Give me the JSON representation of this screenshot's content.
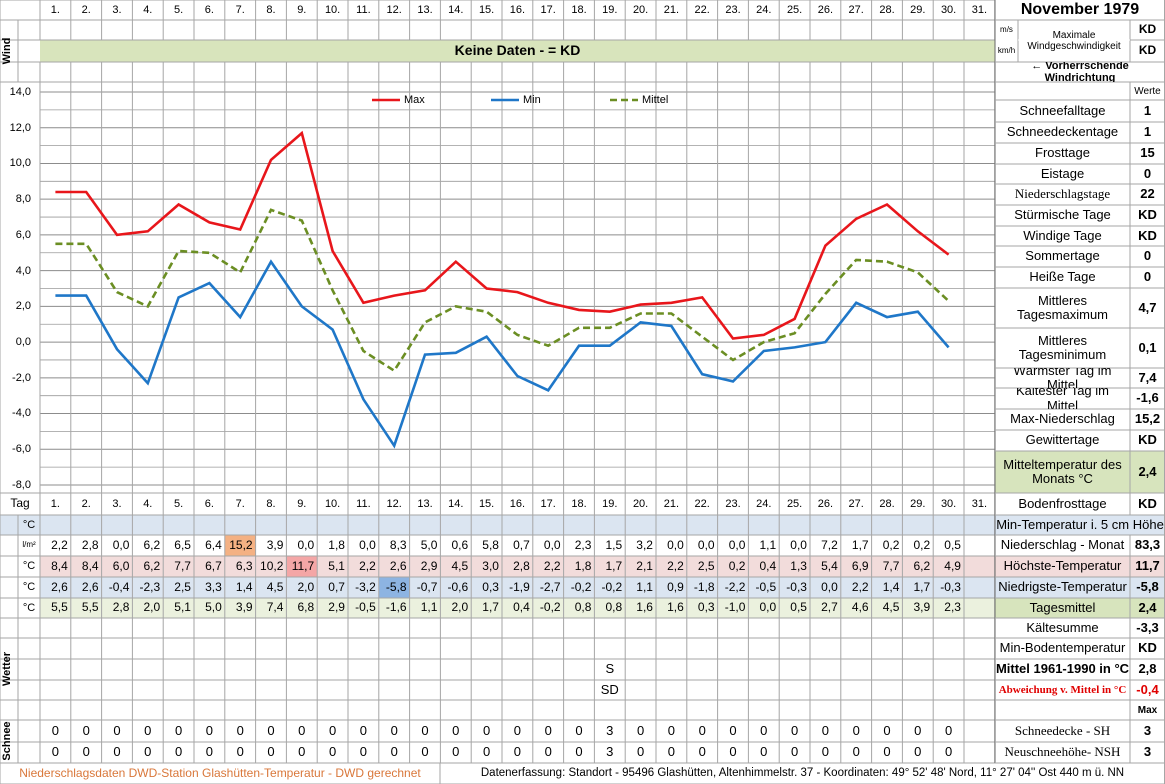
{
  "header": {
    "title": "November 1979",
    "wind_label": "Wind",
    "wind_units": [
      "m/s",
      "km/h"
    ],
    "wind_max_label": "Maximale Windgeschwindigkeit",
    "wind_max_values": [
      "KD",
      "KD"
    ],
    "wind_direction": "← Vorherrschende Windrichtung",
    "no_data": "Keine Daten -  = KD"
  },
  "chart_data": {
    "type": "line",
    "categories": [
      "1.",
      "2.",
      "3.",
      "4.",
      "5.",
      "6.",
      "7.",
      "8.",
      "9.",
      "10.",
      "11.",
      "12.",
      "13.",
      "14.",
      "15.",
      "16.",
      "17.",
      "18.",
      "19.",
      "20.",
      "21.",
      "22.",
      "23.",
      "24.",
      "25.",
      "26.",
      "27.",
      "28.",
      "29.",
      "30.",
      "31."
    ],
    "ylim": [
      -8,
      14
    ],
    "yticks": [
      {
        "value": 14,
        "label": "14,0"
      },
      {
        "value": 12,
        "label": "12,0"
      },
      {
        "value": 10,
        "label": "10,0"
      },
      {
        "value": 8,
        "label": "8,0"
      },
      {
        "value": 6,
        "label": "6,0"
      },
      {
        "value": 4,
        "label": "4,0"
      },
      {
        "value": 2,
        "label": "2,0"
      },
      {
        "value": 0,
        "label": "0,0"
      },
      {
        "value": -2,
        "label": "-2,0"
      },
      {
        "value": -4,
        "label": "-4,0"
      },
      {
        "value": -6,
        "label": "-6,0"
      },
      {
        "value": -8,
        "label": "-8,0"
      }
    ],
    "yminor": [
      13,
      11,
      9,
      7,
      5,
      3,
      1,
      -1,
      -3,
      -5,
      -7
    ],
    "grid": true,
    "legend": "top",
    "series": [
      {
        "name": "Max",
        "color": "#e8161b",
        "dash": false,
        "values": [
          8.4,
          8.4,
          6.0,
          6.2,
          7.7,
          6.7,
          6.3,
          10.2,
          11.7,
          5.1,
          2.2,
          2.6,
          2.9,
          4.5,
          3.0,
          2.8,
          2.2,
          1.8,
          1.7,
          2.1,
          2.2,
          2.5,
          0.2,
          0.4,
          1.3,
          5.4,
          6.9,
          7.7,
          6.2,
          4.9,
          null
        ],
        "value_labels": [
          "8,4",
          "8,4",
          "6,0",
          "6,2",
          "7,7",
          "6,7",
          "6,3",
          "10,2",
          "11,7",
          "5,1",
          "2,2",
          "2,6",
          "2,9",
          "4,5",
          "3,0",
          "2,8",
          "2,2",
          "1,8",
          "1,7",
          "2,1",
          "2,2",
          "2,5",
          "0,2",
          "0,4",
          "1,3",
          "5,4",
          "6,9",
          "7,7",
          "6,2",
          "4,9",
          null
        ]
      },
      {
        "name": "Min",
        "color": "#1f77c8",
        "dash": false,
        "values": [
          2.6,
          2.6,
          -0.4,
          -2.3,
          2.5,
          3.3,
          1.4,
          4.5,
          2.0,
          0.7,
          -3.2,
          -5.8,
          -0.7,
          -0.6,
          0.3,
          -1.9,
          -2.7,
          -0.2,
          -0.2,
          1.1,
          0.9,
          -1.8,
          -2.2,
          -0.5,
          -0.3,
          0.0,
          2.2,
          1.4,
          1.7,
          -0.3,
          null
        ],
        "value_labels": [
          "2,6",
          "2,6",
          "-0,4",
          "-2,3",
          "2,5",
          "3,3",
          "1,4",
          "4,5",
          "2,0",
          "0,7",
          "-3,2",
          "-5,8",
          "-0,7",
          "-0,6",
          "0,3",
          "-1,9",
          "-2,7",
          "-0,2",
          "-0,2",
          "1,1",
          "0,9",
          "-1,8",
          "-2,2",
          "-0,5",
          "-0,3",
          "0,0",
          "2,2",
          "1,4",
          "1,7",
          "-0,3",
          null
        ]
      },
      {
        "name": "Mittel",
        "color": "#6b8e23",
        "dash": true,
        "values": [
          5.5,
          5.5,
          2.8,
          2.0,
          5.1,
          5.0,
          3.9,
          7.4,
          6.8,
          2.9,
          -0.5,
          -1.6,
          1.1,
          2.0,
          1.7,
          0.4,
          -0.2,
          0.8,
          0.8,
          1.6,
          1.6,
          0.3,
          -1.0,
          0.0,
          0.5,
          2.7,
          4.6,
          4.5,
          3.9,
          2.3,
          null
        ],
        "value_labels": [
          "5,5",
          "5,5",
          "2,8",
          "2,0",
          "5,1",
          "5,0",
          "3,9",
          "7,4",
          "6,8",
          "2,9",
          "-0,5",
          "-1,6",
          "1,1",
          "2,0",
          "1,7",
          "0,4",
          "-0,2",
          "0,8",
          "0,8",
          "1,6",
          "1,6",
          "0,3",
          "-1,0",
          "0,0",
          "0,5",
          "2,7",
          "4,6",
          "4,5",
          "3,9",
          "2,3",
          null
        ]
      }
    ]
  },
  "table": {
    "day_label": "Tag",
    "units": [
      "°C",
      "l/m²",
      "°C",
      "°C",
      "°C"
    ],
    "precipitation": [
      "2,2",
      "2,8",
      "0,0",
      "6,2",
      "6,5",
      "6,4",
      "15,2",
      "3,9",
      "0,0",
      "1,8",
      "0,0",
      "8,3",
      "5,0",
      "0,6",
      "5,8",
      "0,7",
      "0,0",
      "2,3",
      "1,5",
      "3,2",
      "0,0",
      "0,0",
      "0,0",
      "1,1",
      "0,0",
      "7,2",
      "1,7",
      "0,2",
      "0,2",
      "0,5",
      null
    ],
    "weather_label": "Wetter",
    "weather": [
      [
        null,
        null,
        null,
        null,
        null,
        null,
        null,
        null,
        null,
        null,
        null,
        null,
        null,
        null,
        null,
        null,
        null,
        null,
        null,
        null,
        null,
        null,
        null,
        null,
        null,
        null,
        null,
        null,
        null,
        null,
        null
      ],
      [
        null,
        null,
        null,
        null,
        null,
        null,
        null,
        null,
        null,
        null,
        null,
        null,
        null,
        null,
        null,
        null,
        null,
        null,
        null,
        null,
        null,
        null,
        null,
        null,
        null,
        null,
        null,
        null,
        null,
        null,
        null
      ],
      [
        null,
        null,
        null,
        null,
        null,
        null,
        null,
        null,
        null,
        null,
        null,
        null,
        null,
        null,
        null,
        null,
        null,
        null,
        "S",
        null,
        null,
        null,
        null,
        null,
        null,
        null,
        null,
        null,
        null,
        null,
        null
      ],
      [
        null,
        null,
        null,
        null,
        null,
        null,
        null,
        null,
        null,
        null,
        null,
        null,
        null,
        null,
        null,
        null,
        null,
        null,
        "SD",
        null,
        null,
        null,
        null,
        null,
        null,
        null,
        null,
        null,
        null,
        null,
        null
      ],
      [
        null,
        null,
        null,
        null,
        null,
        null,
        null,
        null,
        null,
        null,
        null,
        null,
        null,
        null,
        null,
        null,
        null,
        null,
        null,
        null,
        null,
        null,
        null,
        null,
        null,
        null,
        null,
        null,
        null,
        null,
        null
      ]
    ],
    "snow_label": "Schnee",
    "snow": [
      [
        0,
        0,
        0,
        0,
        0,
        0,
        0,
        0,
        0,
        0,
        0,
        0,
        0,
        0,
        0,
        0,
        0,
        0,
        3,
        0,
        0,
        0,
        0,
        0,
        0,
        0,
        0,
        0,
        0,
        0,
        null
      ],
      [
        0,
        0,
        0,
        0,
        0,
        0,
        0,
        0,
        0,
        0,
        0,
        0,
        0,
        0,
        0,
        0,
        0,
        0,
        3,
        0,
        0,
        0,
        0,
        0,
        0,
        0,
        0,
        0,
        0,
        0,
        null
      ]
    ]
  },
  "stats_header": "Werte",
  "stats": [
    {
      "label": "Schneefalltage",
      "value": "1"
    },
    {
      "label": "Schneedeckentage",
      "value": "1"
    },
    {
      "label": "Frosttage",
      "value": "15"
    },
    {
      "label": "Eistage",
      "value": "0"
    },
    {
      "label": "Niederschlagstage",
      "value": "22"
    },
    {
      "label": "Stürmische Tage",
      "value": "KD"
    },
    {
      "label": "Windige Tage",
      "value": "KD"
    },
    {
      "label": "Sommertage",
      "value": "0"
    },
    {
      "label": "Heiße Tage",
      "value": "0"
    },
    {
      "label": "Mittleres Tagesmaximum",
      "value": "4,7"
    },
    {
      "label": "Mittleres Tagesminimum",
      "value": "0,1"
    },
    {
      "label": "Wärmster Tag im Mittel",
      "value": "7,4"
    },
    {
      "label": "Kältester Tag im Mittel",
      "value": "-1,6"
    },
    {
      "label": "Max-Niederschlag",
      "value": "15,2"
    },
    {
      "label": "Gewittertage",
      "value": "KD"
    },
    {
      "label": "Mitteltemperatur des Monats °C",
      "value": "2,4"
    }
  ],
  "summary": [
    {
      "label": "Bodenfrosttage",
      "value": "KD"
    },
    {
      "label": "Min-Temperatur i. 5 cm Höhe"
    },
    {
      "label": "Niederschlag - Monat",
      "value": "83,3"
    },
    {
      "label": "Höchste-Temperatur",
      "value": "11,7"
    },
    {
      "label": "Niedrigste-Temperatur",
      "value": "-5,8"
    },
    {
      "label": "Tagesmittel",
      "value": "2,4"
    },
    {
      "label": "Kältesumme",
      "value": "-3,3"
    },
    {
      "label": "Min-Bodentemperatur",
      "value": "KD"
    },
    {
      "label": "Mittel 1961-1990 in °C",
      "value": "2,8"
    },
    {
      "label": "Abweichung v. Mittel in °C",
      "value": "-0,4"
    },
    {
      "value": "Max"
    },
    {
      "label": "Schneedecke -   SH",
      "value": "3"
    },
    {
      "label": "Neuschneehöhe- NSH",
      "value": "3"
    }
  ],
  "footer": {
    "source": "Niederschlagsdaten DWD-Station Glashütten-Temperatur -  DWD gerechnet",
    "location": "Datenerfassung: Standort -  95496 Glashütten, Altenhimmelstr. 37 - Koordinaten:  49° 52' 48' Nord,   11° 27' 04'' Ost  440 m ü. NN"
  }
}
